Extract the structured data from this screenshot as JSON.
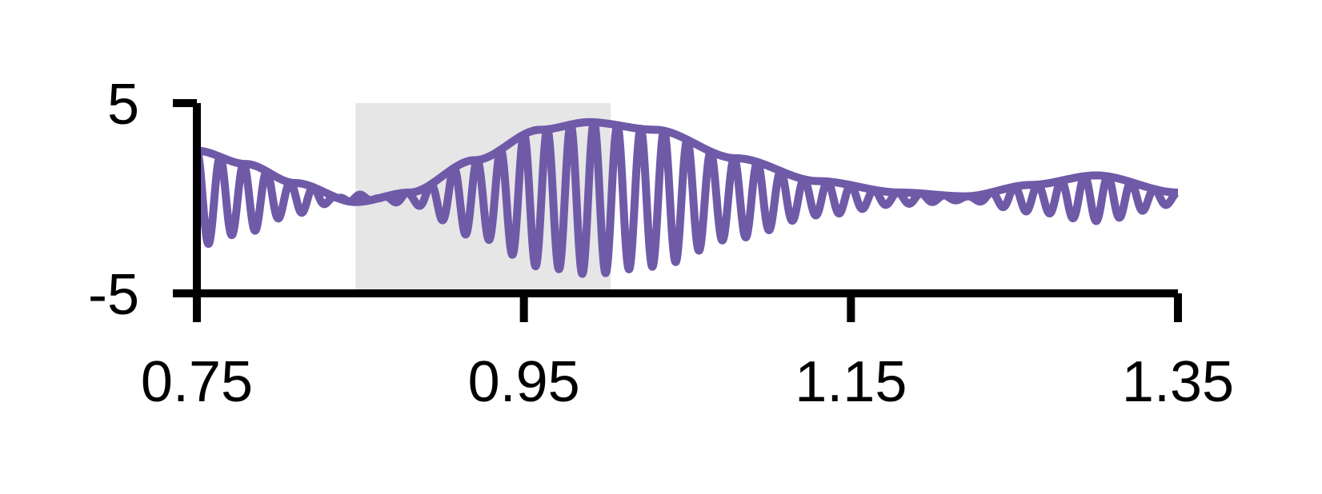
{
  "chart_data": {
    "type": "line",
    "title": "",
    "xlabel": "",
    "ylabel": "",
    "xlim": [
      0.75,
      1.35
    ],
    "ylim": [
      -5,
      5
    ],
    "x_ticks": [
      {
        "value": 0.75,
        "label": "0.75"
      },
      {
        "value": 0.95,
        "label": "0.95"
      },
      {
        "value": 1.15,
        "label": "1.15"
      },
      {
        "value": 1.35,
        "label": "1.35"
      }
    ],
    "y_ticks": [
      {
        "value": 5,
        "label": "5"
      },
      {
        "value": -5,
        "label": "-5"
      }
    ],
    "highlight_region": {
      "x": [
        0.847,
        1.003
      ],
      "y": [
        -5,
        5
      ],
      "color": "#e6e6e6"
    },
    "grid": false,
    "legend": "none",
    "series": [
      {
        "color": "#6f5aa8",
        "style": "oscillating signal with upper envelope",
        "envelope": [
          {
            "x": 0.75,
            "y": 2.5
          },
          {
            "x": 0.78,
            "y": 1.8
          },
          {
            "x": 0.81,
            "y": 0.8
          },
          {
            "x": 0.847,
            "y": -0.2
          },
          {
            "x": 0.88,
            "y": 0.3
          },
          {
            "x": 0.92,
            "y": 2.0
          },
          {
            "x": 0.96,
            "y": 3.6
          },
          {
            "x": 0.99,
            "y": 4.0
          },
          {
            "x": 1.03,
            "y": 3.6
          },
          {
            "x": 1.08,
            "y": 2.1
          },
          {
            "x": 1.13,
            "y": 0.9
          },
          {
            "x": 1.18,
            "y": 0.3
          },
          {
            "x": 1.22,
            "y": 0.1
          },
          {
            "x": 1.26,
            "y": 0.7
          },
          {
            "x": 1.3,
            "y": 1.2
          },
          {
            "x": 1.35,
            "y": 0.3
          }
        ],
        "oscillation_frequency": 70
      }
    ]
  }
}
